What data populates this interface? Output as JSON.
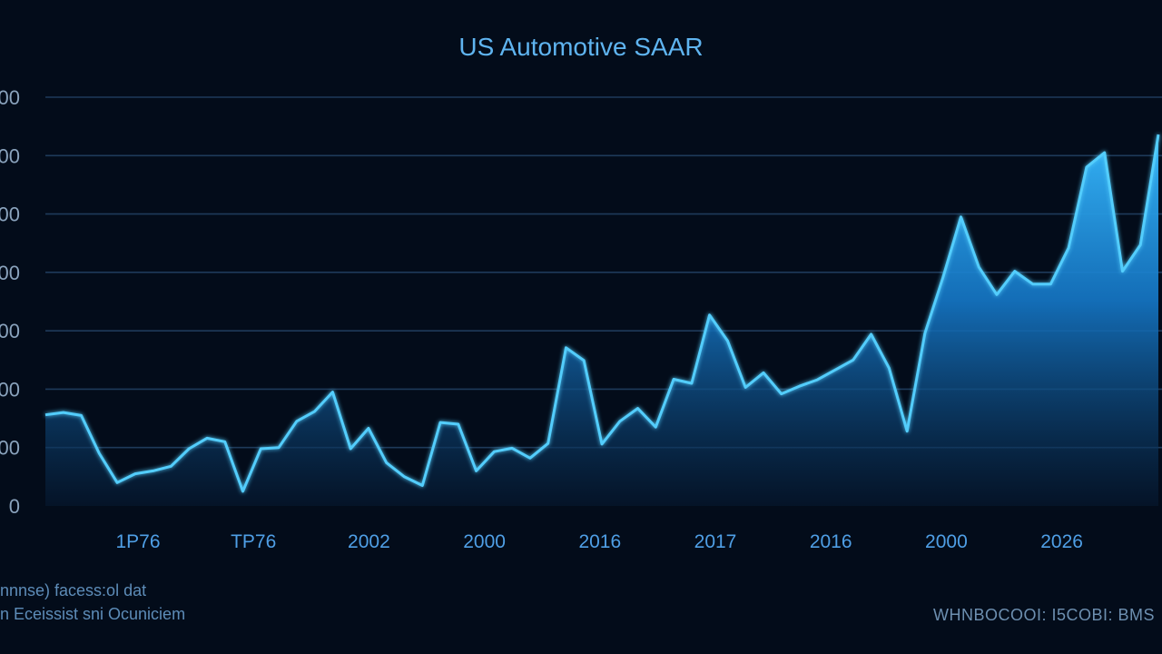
{
  "chart_data": {
    "type": "area",
    "title": "US Automotive SAAR",
    "xlabel": "",
    "ylabel": "",
    "y_tick_labels": [
      "0",
      "00",
      "00",
      "00",
      "00",
      "00",
      "00",
      "00"
    ],
    "x_tick_labels": [
      "1P76",
      "TP76",
      "2002",
      "2000",
      "2016",
      "2017",
      "2016",
      "2000",
      "2026"
    ],
    "ylim": [
      0,
      7
    ],
    "grid": true,
    "legend": "none",
    "color": "#3cb6f8",
    "values": [
      1.56,
      1.6,
      1.55,
      0.9,
      0.4,
      0.55,
      0.6,
      0.68,
      0.98,
      1.16,
      1.1,
      0.25,
      0.98,
      1.0,
      1.45,
      1.62,
      1.95,
      0.98,
      1.33,
      0.74,
      0.5,
      0.35,
      1.43,
      1.4,
      0.6,
      0.93,
      0.99,
      0.82,
      1.07,
      2.71,
      2.49,
      1.06,
      1.45,
      1.67,
      1.35,
      2.17,
      2.1,
      3.27,
      2.83,
      2.03,
      2.28,
      1.92,
      2.05,
      2.16,
      2.33,
      2.5,
      2.94,
      2.36,
      1.28,
      2.96,
      3.91,
      4.95,
      4.09,
      3.62,
      4.02,
      3.8,
      3.8,
      4.42,
      5.8,
      6.05,
      4.02,
      4.47,
      6.36
    ]
  },
  "footer": {
    "left_line1": "nnnse) facess:ol dat",
    "left_line2": "n Eceissist sni Ocuniciem",
    "right": "WHNBOCOOI: I5COBI: BMS"
  }
}
